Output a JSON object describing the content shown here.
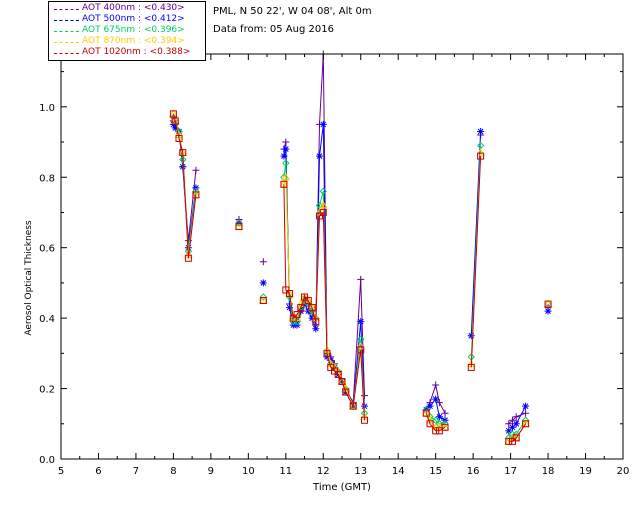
{
  "header": {
    "site": "PML, N 50 22', W 04 08', Alt 0m",
    "date": "Data from: 05 Aug 2016"
  },
  "legend": [
    {
      "label": "AOT  400nm  : <0.430>",
      "color": "#660099"
    },
    {
      "label": "AOT  500nm  : <0.412>",
      "color": "#0000ff"
    },
    {
      "label": "AOT  675nm  : <0.396>",
      "color": "#00cc66"
    },
    {
      "label": "AOT  870nm  : <0.394>",
      "color": "#ffcc00"
    },
    {
      "label": "AOT 1020nm : <0.388>",
      "color": "#cc0000"
    }
  ],
  "chart_data": {
    "type": "line",
    "xlabel": "Time (GMT)",
    "ylabel": "Aerosol Optical Thickness",
    "xlim": [
      5,
      20
    ],
    "ylim": [
      0,
      1.15
    ],
    "xticks": [
      "5",
      "6",
      "7",
      "8",
      "9",
      "10",
      "11",
      "12",
      "13",
      "14",
      "15",
      "16",
      "17",
      "18",
      "19",
      "20"
    ],
    "yticks": [
      "0.0",
      "0.2",
      "0.4",
      "0.6",
      "0.8",
      "1.0"
    ],
    "series": [
      {
        "name": "AOT  400nm  : <0.430>",
        "color": "#660099",
        "marker": "plus",
        "x": [
          8.0,
          8.05,
          8.15,
          8.25,
          8.4,
          8.6,
          9.75,
          10.4,
          10.95,
          11.0,
          11.1,
          11.2,
          11.3,
          11.4,
          11.5,
          11.6,
          11.7,
          11.8,
          11.9,
          12.0,
          12.1,
          12.2,
          12.3,
          12.4,
          12.5,
          12.6,
          12.8,
          13.0,
          13.1,
          14.75,
          14.85,
          15.0,
          15.1,
          15.25,
          16.2,
          16.95,
          17.05,
          17.15,
          17.4,
          18.0
        ],
        "y": [
          0.96,
          0.95,
          0.93,
          0.83,
          0.62,
          0.82,
          0.68,
          0.56,
          0.88,
          0.9,
          0.44,
          0.4,
          0.39,
          0.42,
          0.46,
          0.44,
          0.42,
          0.38,
          0.95,
          1.15,
          0.3,
          0.29,
          0.27,
          0.25,
          0.22,
          0.2,
          0.16,
          0.51,
          0.18,
          0.14,
          0.16,
          0.21,
          0.16,
          0.13,
          0.92,
          0.1,
          0.11,
          0.12,
          0.13,
          0.43
        ]
      },
      {
        "name": "AOT  500nm  : <0.412>",
        "color": "#0000ff",
        "marker": "star",
        "x": [
          8.0,
          8.05,
          8.15,
          8.25,
          8.4,
          8.6,
          9.75,
          10.4,
          10.95,
          11.0,
          11.1,
          11.2,
          11.3,
          11.4,
          11.5,
          11.6,
          11.7,
          11.8,
          11.9,
          12.0,
          12.1,
          12.2,
          12.3,
          12.4,
          12.5,
          12.6,
          12.8,
          13.0,
          13.1,
          14.75,
          14.85,
          15.0,
          15.1,
          15.25,
          15.95,
          16.2,
          16.95,
          17.05,
          17.15,
          17.4,
          18.0
        ],
        "y": [
          0.95,
          0.94,
          0.93,
          0.83,
          0.6,
          0.77,
          0.67,
          0.5,
          0.86,
          0.88,
          0.43,
          0.38,
          0.38,
          0.42,
          0.44,
          0.42,
          0.4,
          0.37,
          0.86,
          0.95,
          0.29,
          0.28,
          0.26,
          0.24,
          0.22,
          0.19,
          0.15,
          0.39,
          0.15,
          0.14,
          0.15,
          0.17,
          0.12,
          0.11,
          0.35,
          0.93,
          0.08,
          0.09,
          0.1,
          0.15,
          0.42
        ]
      },
      {
        "name": "AOT  675nm  : <0.396>",
        "color": "#00cc66",
        "marker": "diamond",
        "x": [
          8.0,
          8.05,
          8.15,
          8.25,
          8.4,
          8.6,
          9.75,
          10.4,
          10.95,
          11.0,
          11.1,
          11.2,
          11.3,
          11.4,
          11.5,
          11.6,
          11.7,
          11.8,
          11.9,
          12.0,
          12.1,
          12.2,
          12.3,
          12.4,
          12.5,
          12.6,
          12.8,
          13.0,
          13.1,
          14.75,
          14.85,
          15.0,
          15.1,
          15.25,
          15.95,
          16.2,
          16.95,
          17.05,
          17.15,
          17.4,
          18.0
        ],
        "y": [
          0.97,
          0.96,
          0.93,
          0.85,
          0.59,
          0.76,
          0.67,
          0.46,
          0.8,
          0.84,
          0.46,
          0.39,
          0.39,
          0.43,
          0.45,
          0.44,
          0.42,
          0.4,
          0.72,
          0.76,
          0.3,
          0.27,
          0.26,
          0.25,
          0.22,
          0.2,
          0.15,
          0.34,
          0.13,
          0.14,
          0.12,
          0.11,
          0.1,
          0.1,
          0.29,
          0.89,
          0.06,
          0.07,
          0.07,
          0.11,
          0.44
        ]
      },
      {
        "name": "AOT  870nm  : <0.394>",
        "color": "#ffcc00",
        "marker": "triangle",
        "x": [
          8.0,
          8.05,
          8.15,
          8.25,
          8.4,
          8.6,
          9.75,
          10.4,
          10.95,
          11.0,
          11.1,
          11.2,
          11.3,
          11.4,
          11.5,
          11.6,
          11.7,
          11.8,
          11.9,
          12.0,
          12.1,
          12.2,
          12.3,
          12.4,
          12.5,
          12.6,
          12.8,
          13.0,
          13.1,
          14.75,
          14.85,
          15.0,
          15.1,
          15.25,
          15.95,
          16.2,
          16.95,
          17.05,
          17.15,
          17.4,
          18.0
        ],
        "y": [
          0.98,
          0.96,
          0.92,
          0.87,
          0.58,
          0.75,
          0.66,
          0.45,
          0.78,
          0.8,
          0.47,
          0.4,
          0.4,
          0.44,
          0.46,
          0.45,
          0.43,
          0.4,
          0.7,
          0.72,
          0.31,
          0.27,
          0.26,
          0.25,
          0.22,
          0.2,
          0.15,
          0.32,
          0.12,
          0.13,
          0.11,
          0.09,
          0.09,
          0.09,
          0.27,
          0.87,
          0.05,
          0.06,
          0.06,
          0.1,
          0.44
        ]
      },
      {
        "name": "AOT 1020nm : <0.388>",
        "color": "#cc0000",
        "marker": "square",
        "x": [
          8.0,
          8.05,
          8.15,
          8.25,
          8.4,
          8.6,
          9.75,
          10.4,
          10.95,
          11.0,
          11.1,
          11.2,
          11.3,
          11.4,
          11.5,
          11.6,
          11.7,
          11.8,
          11.9,
          12.0,
          12.1,
          12.2,
          12.3,
          12.4,
          12.5,
          12.6,
          12.8,
          13.0,
          13.1,
          14.75,
          14.85,
          15.0,
          15.1,
          15.25,
          15.95,
          16.2,
          16.95,
          17.05,
          17.15,
          17.4,
          18.0
        ],
        "y": [
          0.98,
          0.96,
          0.91,
          0.87,
          0.57,
          0.75,
          0.66,
          0.45,
          0.78,
          0.48,
          0.47,
          0.4,
          0.41,
          0.43,
          0.46,
          0.45,
          0.43,
          0.39,
          0.69,
          0.7,
          0.3,
          0.26,
          0.25,
          0.24,
          0.22,
          0.19,
          0.15,
          0.31,
          0.11,
          0.13,
          0.1,
          0.08,
          0.08,
          0.09,
          0.26,
          0.86,
          0.05,
          0.05,
          0.06,
          0.1,
          0.44
        ]
      }
    ]
  }
}
